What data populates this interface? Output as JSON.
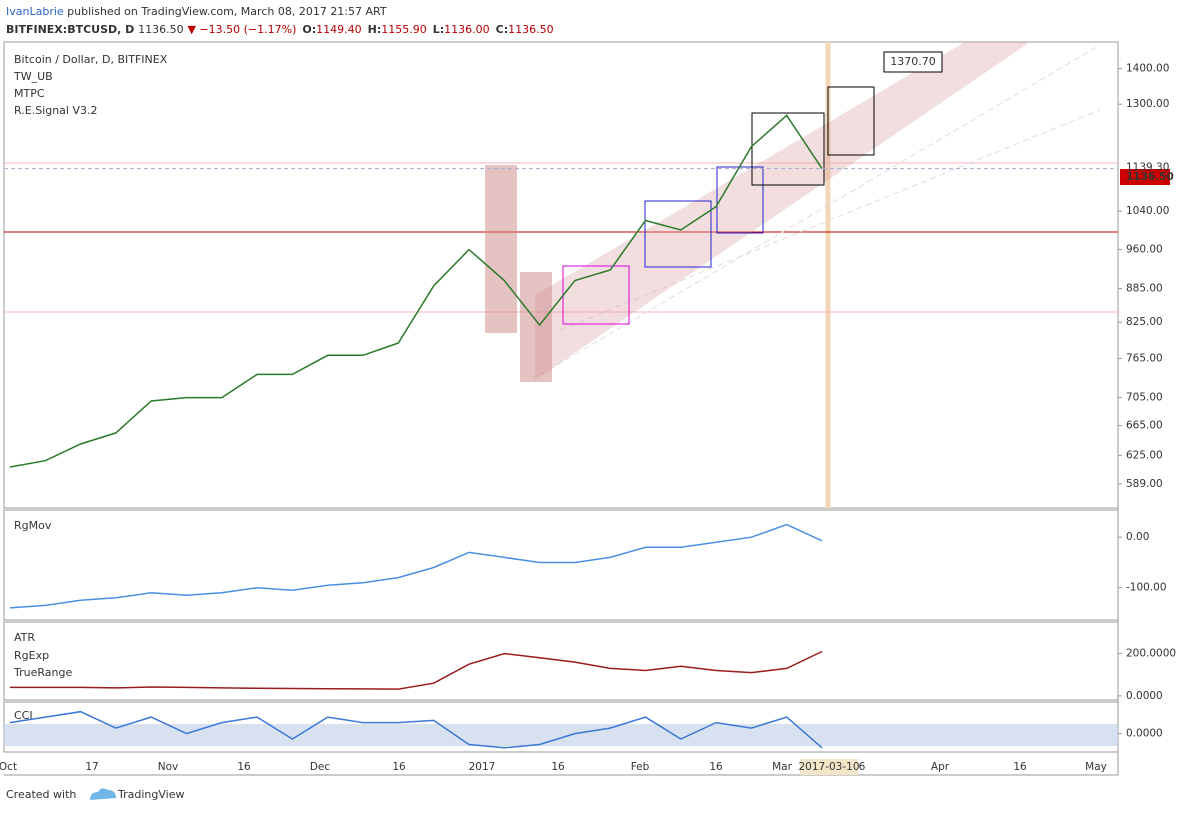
{
  "header": {
    "author": "IvanLabrie",
    "published": "published on TradingView.com, March 08, 2017 21:57 ART",
    "symbol": "BITFINEX:BTCUSD, D",
    "last": "1136.50",
    "change": "▼ −13.50 (−1.17%)",
    "ohlc": [
      {
        "key": "O:",
        "value": "1149.40"
      },
      {
        "key": "H:",
        "value": "1155.90"
      },
      {
        "key": "L:",
        "value": "1136.00"
      },
      {
        "key": "C:",
        "value": "1136.50"
      }
    ]
  },
  "main_pane": {
    "title": "Bitcoin / Dollar, D, BITFINEX",
    "studies": [
      "TW_UB",
      "MTPC",
      "R.E.Signal V3.2"
    ],
    "scale": "log",
    "ticks": [
      {
        "value": 1400,
        "label": "1400.00"
      },
      {
        "value": 1300,
        "label": "1300.00"
      },
      {
        "value": 1040,
        "label": "1040.00"
      },
      {
        "value": 960,
        "label": "960.00"
      },
      {
        "value": 885,
        "label": "885.00"
      },
      {
        "value": 825,
        "label": "825.00"
      },
      {
        "value": 765,
        "label": "765.00"
      },
      {
        "value": 705,
        "label": "705.00"
      },
      {
        "value": 665,
        "label": "665.00"
      },
      {
        "value": 625,
        "label": "625.00"
      },
      {
        "value": 589,
        "label": "589.00"
      }
    ],
    "lim": [
      560,
      1480
    ],
    "close": [
      610,
      618,
      640,
      655,
      700,
      705,
      705,
      740,
      740,
      770,
      770,
      790,
      890,
      960,
      900,
      820,
      900,
      920,
      1020,
      1000,
      1050,
      1190,
      1270,
      1136.5
    ],
    "target_label": "1370.70",
    "level_label": {
      "value": 1139.3,
      "label": "1139.30"
    },
    "last_label": {
      "value": 1136.5,
      "label": "1136.50"
    }
  },
  "rgmov_pane": {
    "title": "RgMov",
    "lim": [
      -160,
      50
    ],
    "ticks": [
      {
        "value": 0,
        "label": "0.00"
      },
      {
        "value": -100,
        "label": "-100.00"
      }
    ],
    "values": [
      -140,
      -135,
      -125,
      -120,
      -110,
      -115,
      -110,
      -100,
      -105,
      -95,
      -90,
      -80,
      -60,
      -30,
      -40,
      -50,
      -50,
      -40,
      -20,
      -20,
      -10,
      0,
      25,
      -7
    ]
  },
  "atr_pane": {
    "titles": [
      "ATR",
      "RgExp",
      "TrueRange"
    ],
    "lim": [
      -10,
      340
    ],
    "ticks": [
      {
        "value": 200,
        "label": "200.0000"
      },
      {
        "value": 0,
        "label": "0.0000"
      }
    ],
    "atr": [
      40,
      40,
      40,
      38,
      42,
      40,
      38,
      36,
      35,
      34,
      33,
      32,
      60,
      150,
      200,
      180,
      160,
      130,
      120,
      140,
      120,
      110,
      130,
      210
    ]
  },
  "cci_pane": {
    "title": "CCI",
    "lim": [
      -150,
      270
    ],
    "ticks": [
      {
        "value": 0,
        "label": "0.0000"
      }
    ],
    "values": [
      100,
      150,
      200,
      50,
      150,
      0,
      100,
      150,
      -50,
      150,
      100,
      100,
      120,
      -100,
      -130,
      -100,
      0,
      50,
      150,
      -50,
      100,
      50,
      150,
      -130
    ]
  },
  "time_axis": [
    "Oct",
    "17",
    "Nov",
    "16",
    "Dec",
    "16",
    "2017",
    "16",
    "Feb",
    "16",
    "Mar",
    "2017-03-10",
    "6",
    "Apr",
    "16",
    "May"
  ],
  "footer": {
    "created": "Created with",
    "brand": "TradingView"
  }
}
